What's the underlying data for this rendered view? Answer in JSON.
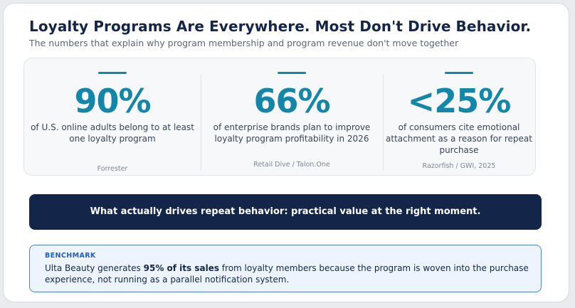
{
  "header": {
    "title": "Loyalty Programs Are Everywhere. Most Don't Drive Behavior.",
    "subtitle": "The numbers that explain why program membership and program revenue don't move together"
  },
  "stats": [
    {
      "value": "90%",
      "description": "of U.S. online adults belong to at least one loyalty program",
      "source": "Forrester"
    },
    {
      "value": "66%",
      "description": "of enterprise brands plan to improve loyalty program profitability in 2026",
      "source": "Retail Dive / Talon.One"
    },
    {
      "value": "<25%",
      "description": "of consumers cite emotional attachment as a reason for repeat purchase",
      "source": "Razorfish / GWI, 2025"
    }
  ],
  "banner": {
    "text": "What actually drives repeat behavior: practical value at the right moment."
  },
  "benchmark": {
    "label": "BENCHMARK",
    "text_before": "Ulta Beauty generates ",
    "text_bold": "95% of its sales",
    "text_after": " from loyalty members because the program is woven into the purchase experience, not running as a parallel notification system."
  },
  "colors": {
    "accent": "#1486a8",
    "navy": "#13264a",
    "benchmark_border": "#4c82d9",
    "benchmark_label": "#1f5fc0"
  }
}
